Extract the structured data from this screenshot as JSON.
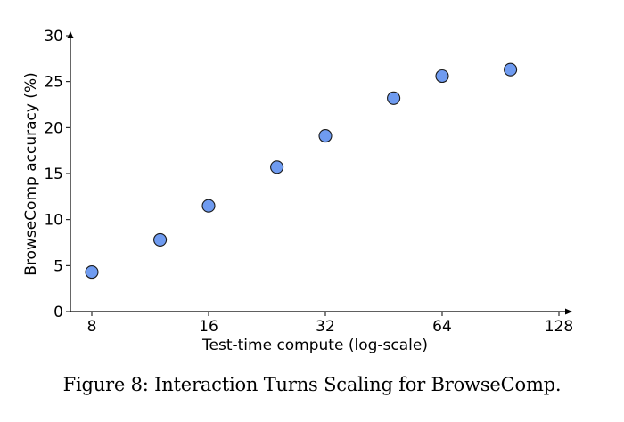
{
  "colors": {
    "marker_fill": "#6f9bf0",
    "marker_edge": "#1a1a1a",
    "axis": "#000000"
  },
  "caption": "Figure 8: Interaction Turns Scaling for BrowseComp.",
  "chart_data": {
    "type": "scatter",
    "title": "",
    "xlabel": "Test-time compute (log-scale)",
    "ylabel": "BrowseComp accuracy (%)",
    "xscale": "log2",
    "xlim": [
      7,
      128
    ],
    "ylim": [
      0,
      30
    ],
    "xticks": [
      8,
      16,
      32,
      64,
      128
    ],
    "yticks": [
      0,
      5,
      10,
      15,
      20,
      25,
      30
    ],
    "grid": false,
    "series": [
      {
        "name": "BrowseComp",
        "x": [
          8,
          12,
          16,
          24,
          32,
          48,
          64,
          96
        ],
        "y": [
          4.3,
          7.8,
          11.5,
          15.7,
          19.1,
          23.2,
          25.6,
          26.3
        ]
      }
    ]
  }
}
